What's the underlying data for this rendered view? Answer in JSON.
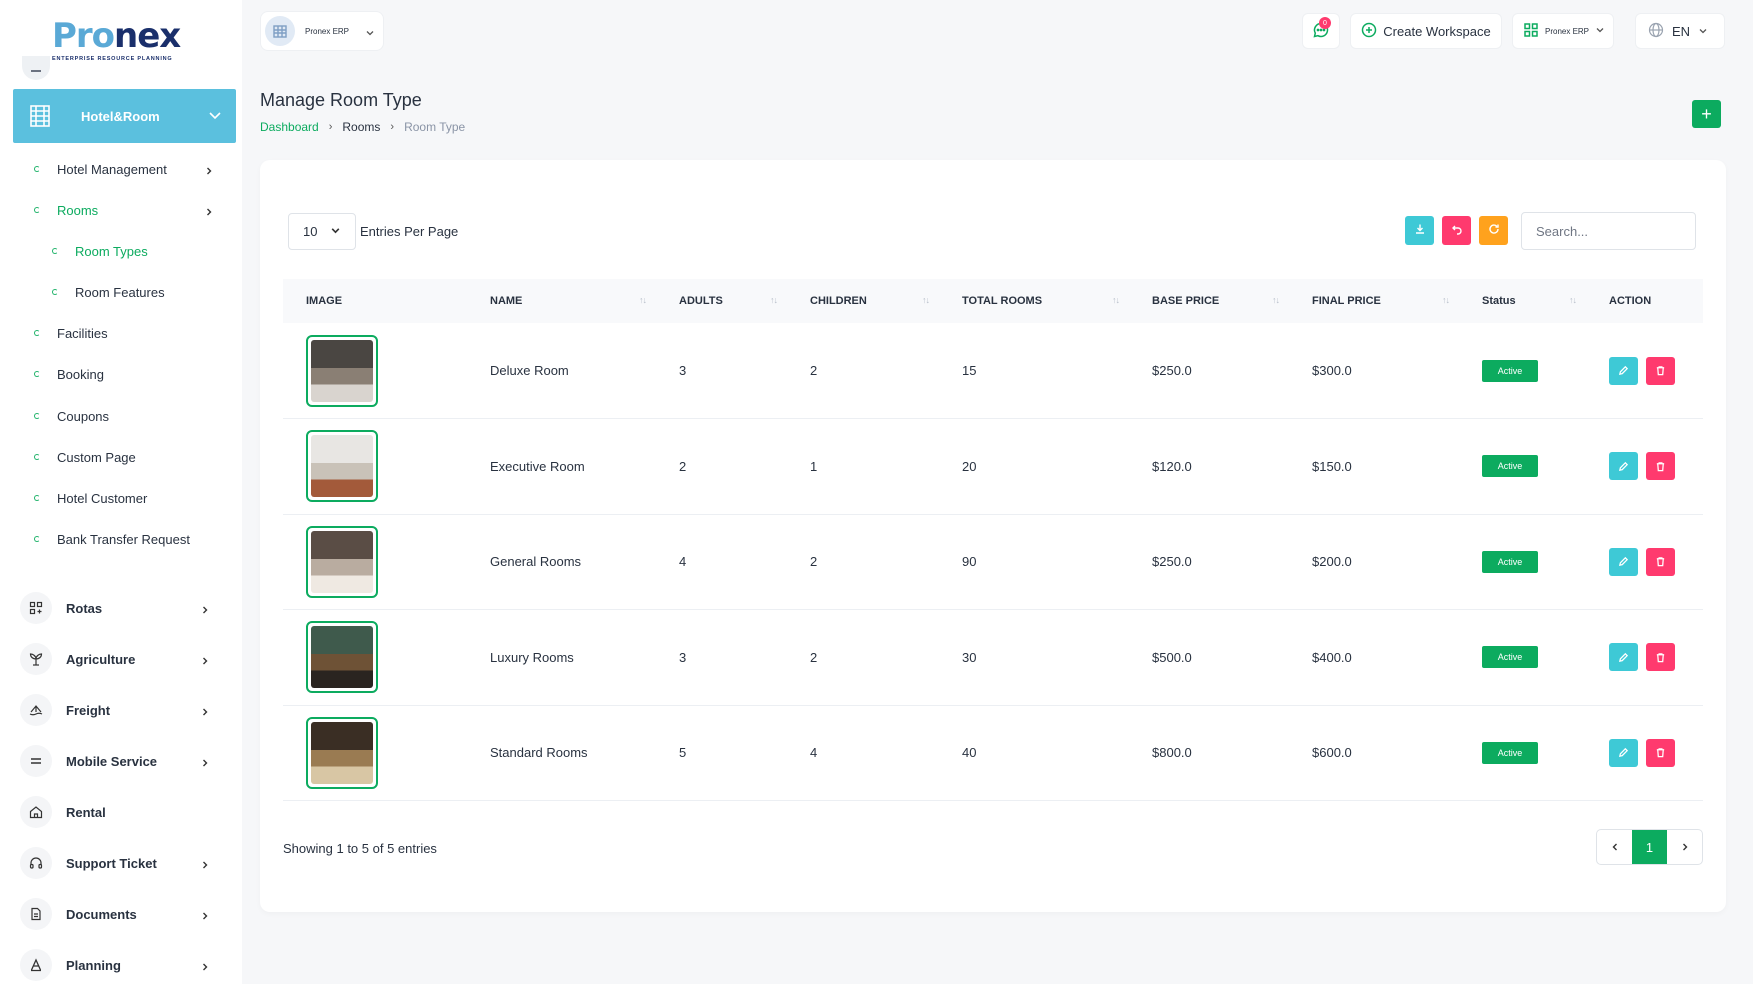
{
  "brand": {
    "logo_first": "Pro",
    "logo_second": "nex",
    "tagline": "ENTERPRISE RESOURCE PLANNING"
  },
  "sidebar": {
    "active_group": {
      "label": "Hotel&Room",
      "icon": "building-icon"
    },
    "sub_items": [
      {
        "label": "Hotel Management",
        "has_chevron": true,
        "active": false
      },
      {
        "label": "Rooms",
        "has_chevron": true,
        "active": true
      },
      {
        "label": "Room Types",
        "level": 2,
        "active": true
      },
      {
        "label": "Room Features",
        "level": 2,
        "active": false
      },
      {
        "label": "Facilities"
      },
      {
        "label": "Booking"
      },
      {
        "label": "Coupons"
      },
      {
        "label": "Custom Page"
      },
      {
        "label": "Hotel Customer"
      },
      {
        "label": "Bank Transfer Request"
      }
    ],
    "nav_items": [
      {
        "label": "Rotas",
        "icon": "grid-icon",
        "has_chevron": true
      },
      {
        "label": "Agriculture",
        "icon": "plant-icon",
        "has_chevron": true
      },
      {
        "label": "Freight",
        "icon": "ship-icon",
        "has_chevron": true
      },
      {
        "label": "Mobile Service",
        "icon": "equals-icon",
        "has_chevron": true
      },
      {
        "label": "Rental",
        "icon": "home-icon",
        "has_chevron": false
      },
      {
        "label": "Support Ticket",
        "icon": "headset-icon",
        "has_chevron": true
      },
      {
        "label": "Documents",
        "icon": "document-icon",
        "has_chevron": true
      },
      {
        "label": "Planning",
        "icon": "letter-a-icon",
        "has_chevron": true
      }
    ]
  },
  "topbar": {
    "workspace_name": "Pronex ERP",
    "chat_badge": "0",
    "create_workspace": "Create Workspace",
    "erp_label": "Pronex ERP",
    "language": "EN"
  },
  "page": {
    "title": "Manage Room Type",
    "breadcrumb": [
      "Dashboard",
      "Rooms",
      "Room Type"
    ]
  },
  "table_controls": {
    "per_page": "10",
    "per_page_label": "Entries Per Page",
    "search_placeholder": "Search..."
  },
  "table": {
    "columns": [
      "IMAGE",
      "NAME",
      "ADULTS",
      "CHILDREN",
      "TOTAL ROOMS",
      "BASE PRICE",
      "FINAL PRICE",
      "Status",
      "ACTION"
    ],
    "rows": [
      {
        "name": "Deluxe Room",
        "adults": "3",
        "children": "2",
        "total_rooms": "15",
        "base_price": "$250.0",
        "final_price": "$300.0",
        "status": "Active",
        "colors": [
          "#4a4642",
          "#8a7f74",
          "#d9d4cf"
        ]
      },
      {
        "name": "Executive Room",
        "adults": "2",
        "children": "1",
        "total_rooms": "20",
        "base_price": "$120.0",
        "final_price": "$150.0",
        "status": "Active",
        "colors": [
          "#e8e6e3",
          "#c9c2b8",
          "#a35a3a"
        ]
      },
      {
        "name": "General Rooms",
        "adults": "4",
        "children": "2",
        "total_rooms": "90",
        "base_price": "$250.0",
        "final_price": "$200.0",
        "status": "Active",
        "colors": [
          "#5a4d45",
          "#b9aca0",
          "#efe9e2"
        ]
      },
      {
        "name": "Luxury Rooms",
        "adults": "3",
        "children": "2",
        "total_rooms": "30",
        "base_price": "$500.0",
        "final_price": "$400.0",
        "status": "Active",
        "colors": [
          "#3f5a4c",
          "#6e5236",
          "#2a2420"
        ]
      },
      {
        "name": "Standard Rooms",
        "adults": "5",
        "children": "4",
        "total_rooms": "40",
        "base_price": "$800.0",
        "final_price": "$600.0",
        "status": "Active",
        "colors": [
          "#3a2e24",
          "#9a7b52",
          "#d8c6a4"
        ]
      }
    ]
  },
  "footer": {
    "showing": "Showing 1 to 5 of 5 entries",
    "current_page": "1"
  }
}
